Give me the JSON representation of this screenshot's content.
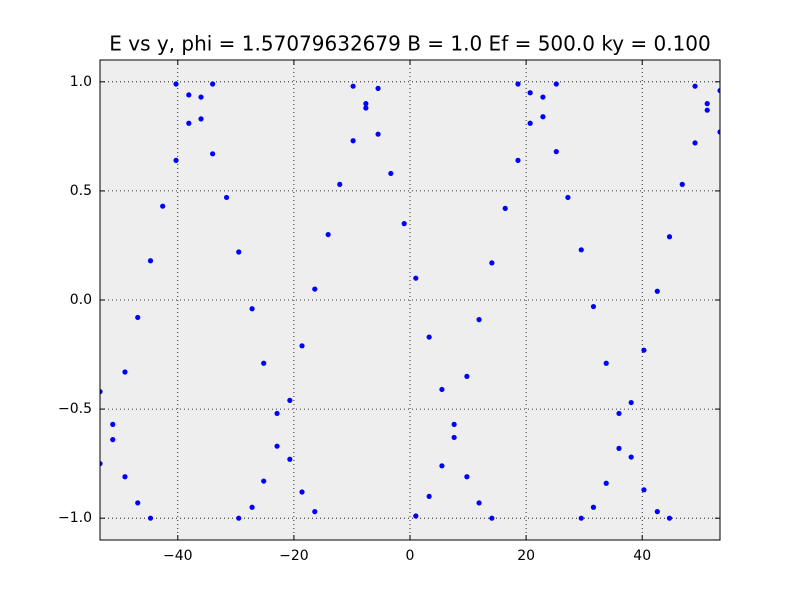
{
  "chart_data": {
    "type": "scatter",
    "title": "E vs y, phi = 1.57079632679 B = 1.0 Ef = 500.0 ky = 0.100",
    "color": "#0000ff",
    "grid": true,
    "xlim": [
      -53.4,
      53.4
    ],
    "ylim": [
      -1.1,
      1.1
    ],
    "xticks": [
      {
        "value": -40,
        "label": "−40"
      },
      {
        "value": -20,
        "label": "−20"
      },
      0,
      20,
      40
    ],
    "yticks": [
      {
        "value": -1.0,
        "label": "−1.0"
      },
      {
        "value": -0.5,
        "label": "−0.5"
      },
      {
        "value": 0.0,
        "label": "0.0"
      },
      {
        "value": 0.5,
        "label": "0.5"
      },
      {
        "value": 1.0,
        "label": "1.0"
      }
    ],
    "x": [
      -53.4,
      -53.4,
      -51.2,
      -51.2,
      -49.1,
      -49.1,
      -46.9,
      -46.9,
      -44.7,
      -44.7,
      -42.6,
      -40.3,
      -40.3,
      -38.1,
      -38.1,
      -36.0,
      -36.0,
      -34.0,
      -34.0,
      -31.6,
      -29.5,
      -29.5,
      -27.2,
      -27.2,
      -25.2,
      -25.2,
      -22.9,
      -22.9,
      -20.7,
      -20.7,
      -18.6,
      -18.6,
      -16.4,
      -16.4,
      -14.1,
      -12.1,
      -9.8,
      -9.8,
      -7.6,
      -7.6,
      -5.5,
      -5.5,
      -3.3,
      -1.0,
      1.0,
      1.0,
      3.3,
      3.3,
      5.5,
      5.5,
      7.6,
      7.6,
      9.8,
      9.8,
      11.9,
      11.9,
      14.1,
      14.1,
      16.4,
      18.6,
      18.6,
      20.7,
      20.7,
      22.9,
      22.9,
      25.2,
      25.2,
      27.2,
      29.5,
      29.5,
      31.6,
      31.6,
      33.8,
      33.8,
      36.0,
      36.0,
      38.1,
      38.1,
      40.3,
      40.3,
      42.6,
      42.6,
      44.7,
      44.7,
      46.9,
      49.1,
      49.1,
      51.2,
      51.2,
      53.4,
      53.4
    ],
    "values": [
      -0.42,
      -0.75,
      -0.57,
      -0.64,
      -0.33,
      -0.81,
      -0.08,
      -0.93,
      0.18,
      -1.0,
      0.43,
      0.99,
      0.64,
      0.94,
      0.81,
      0.93,
      0.83,
      0.99,
      0.67,
      0.47,
      0.22,
      -1.0,
      -0.04,
      -0.95,
      -0.29,
      -0.83,
      -0.52,
      -0.67,
      -0.46,
      -0.73,
      -0.21,
      -0.88,
      0.05,
      -0.97,
      0.3,
      0.53,
      0.98,
      0.73,
      0.9,
      0.88,
      0.97,
      0.76,
      0.58,
      0.35,
      0.1,
      -0.99,
      -0.17,
      -0.9,
      -0.41,
      -0.76,
      -0.57,
      -0.63,
      -0.35,
      -0.81,
      -0.09,
      -0.93,
      0.17,
      -1.0,
      0.42,
      0.99,
      0.64,
      0.95,
      0.81,
      0.93,
      0.84,
      0.99,
      0.68,
      0.47,
      0.23,
      -1.0,
      -0.03,
      -0.95,
      -0.29,
      -0.84,
      -0.52,
      -0.68,
      -0.47,
      -0.72,
      -0.23,
      -0.87,
      0.04,
      -0.97,
      0.29,
      -1.0,
      0.53,
      0.98,
      0.72,
      0.9,
      0.87,
      0.96,
      0.77
    ]
  }
}
